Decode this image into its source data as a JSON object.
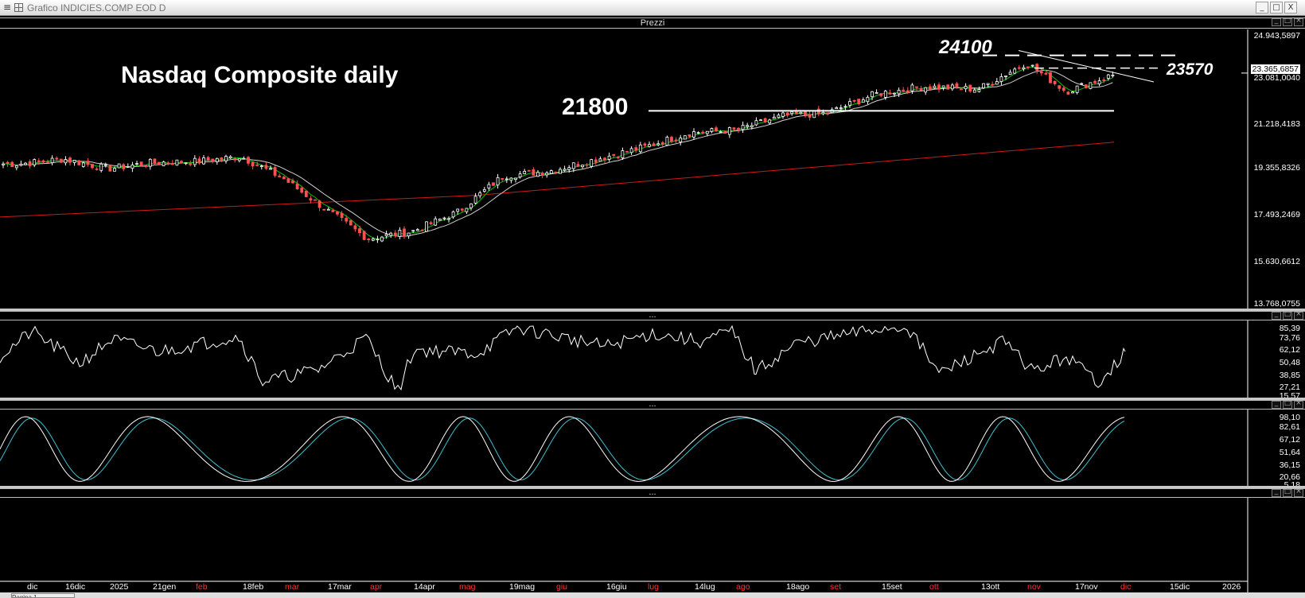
{
  "window": {
    "title": "Grafico INDICIES.COMP EOD D",
    "menu_icon": "hamburger-icon",
    "grid_icon": "grid-icon",
    "buttons": {
      "minimize": "_",
      "maximize": "□",
      "close": "X"
    }
  },
  "price_panel": {
    "title": "Prezzi",
    "annotation_title": "Nasdaq Composite daily",
    "levels": {
      "resistance_high": "24100",
      "resistance_mid": "23570",
      "support": "21800"
    },
    "y_labels": [
      "24.943,5897",
      "23.365,6857",
      "23.081,0040",
      "21.218,4183",
      "19.355,8326",
      "17.493,2469",
      "15.630,6612",
      "13.768,0755"
    ],
    "last_price": "23.365,6857"
  },
  "rsi_panel": {
    "handle": "...",
    "y_labels": [
      "85,39",
      "73,76",
      "62,12",
      "50,48",
      "38,85",
      "27,21",
      "15,57"
    ]
  },
  "stoch_panel": {
    "handle": "...",
    "y_labels": [
      "98,10",
      "82,61",
      "67,12",
      "51,64",
      "36,15",
      "20,66",
      "5,18"
    ]
  },
  "empty_panel": {
    "handle": "..."
  },
  "x_axis": [
    {
      "label": "dic",
      "color": "#ffffff"
    },
    {
      "label": "16dic",
      "color": "#ffffff"
    },
    {
      "label": "2025",
      "color": "#ffffff"
    },
    {
      "label": "21gen",
      "color": "#ffffff"
    },
    {
      "label": "feb",
      "color": "#ff3030"
    },
    {
      "label": "18feb",
      "color": "#ffffff"
    },
    {
      "label": "mar",
      "color": "#ff3030"
    },
    {
      "label": "17mar",
      "color": "#ffffff"
    },
    {
      "label": "apr",
      "color": "#ff3030"
    },
    {
      "label": "14apr",
      "color": "#ffffff"
    },
    {
      "label": "mag",
      "color": "#ff3030"
    },
    {
      "label": "19mag",
      "color": "#ffffff"
    },
    {
      "label": "giu",
      "color": "#ff3030"
    },
    {
      "label": "16giu",
      "color": "#ffffff"
    },
    {
      "label": "lug",
      "color": "#ff3030"
    },
    {
      "label": "14lug",
      "color": "#ffffff"
    },
    {
      "label": "ago",
      "color": "#ff3030"
    },
    {
      "label": "18ago",
      "color": "#ffffff"
    },
    {
      "label": "set",
      "color": "#ff3030"
    },
    {
      "label": "15set",
      "color": "#ffffff"
    },
    {
      "label": "ott",
      "color": "#ff3030"
    },
    {
      "label": "13ott",
      "color": "#ffffff"
    },
    {
      "label": "nov",
      "color": "#ff3030"
    },
    {
      "label": "17nov",
      "color": "#ffffff"
    },
    {
      "label": "dic",
      "color": "#ff3030"
    },
    {
      "label": "15dic",
      "color": "#ffffff"
    },
    {
      "label": "2026",
      "color": "#ffffff"
    }
  ],
  "page_tab": "Pagina 1",
  "colors": {
    "background": "#000000",
    "sma_short": "#00c000",
    "sma_mid": "#d0d0d0",
    "sma_long": "#d01818",
    "candle_up": "#ffffff",
    "candle_down": "#ff5050",
    "rsi": "#ffffff",
    "stoch_k": "#ffffff",
    "stoch_d": "#40c0d0"
  },
  "chart_data": {
    "type": "line",
    "title": "Nasdaq Composite daily",
    "series": [
      {
        "name": "",
        "x": [
          "dic",
          "16dic",
          "2025",
          "21gen",
          "feb",
          "18feb",
          "mar",
          "17mar",
          "apr",
          "14apr",
          "mag",
          "19mag",
          "giu",
          "16giu",
          "lug",
          "14lug",
          "ago",
          "18ago",
          "set",
          "15set",
          "ott",
          "13ott",
          "nov",
          "17nov",
          "dic"
        ],
        "values": [
          19600,
          19800,
          19400,
          19650,
          19700,
          19900,
          19000,
          17700,
          16500,
          16800,
          17600,
          19100,
          19300,
          19800,
          20300,
          20900,
          21000,
          21600,
          21700,
          22500,
          22800,
          22700,
          23800,
          22600,
          23365
        ]
      }
    ],
    "y_labels": [
      "24.943,5897",
      "23.081,0040",
      "21.218,4183",
      "19.355,8326",
      "17.493,2469",
      "15.630,6612",
      "13.768,0755"
    ],
    "ylim": [
      13768,
      24943
    ],
    "horizontal_levels": [
      24100,
      23570,
      21800
    ]
  }
}
